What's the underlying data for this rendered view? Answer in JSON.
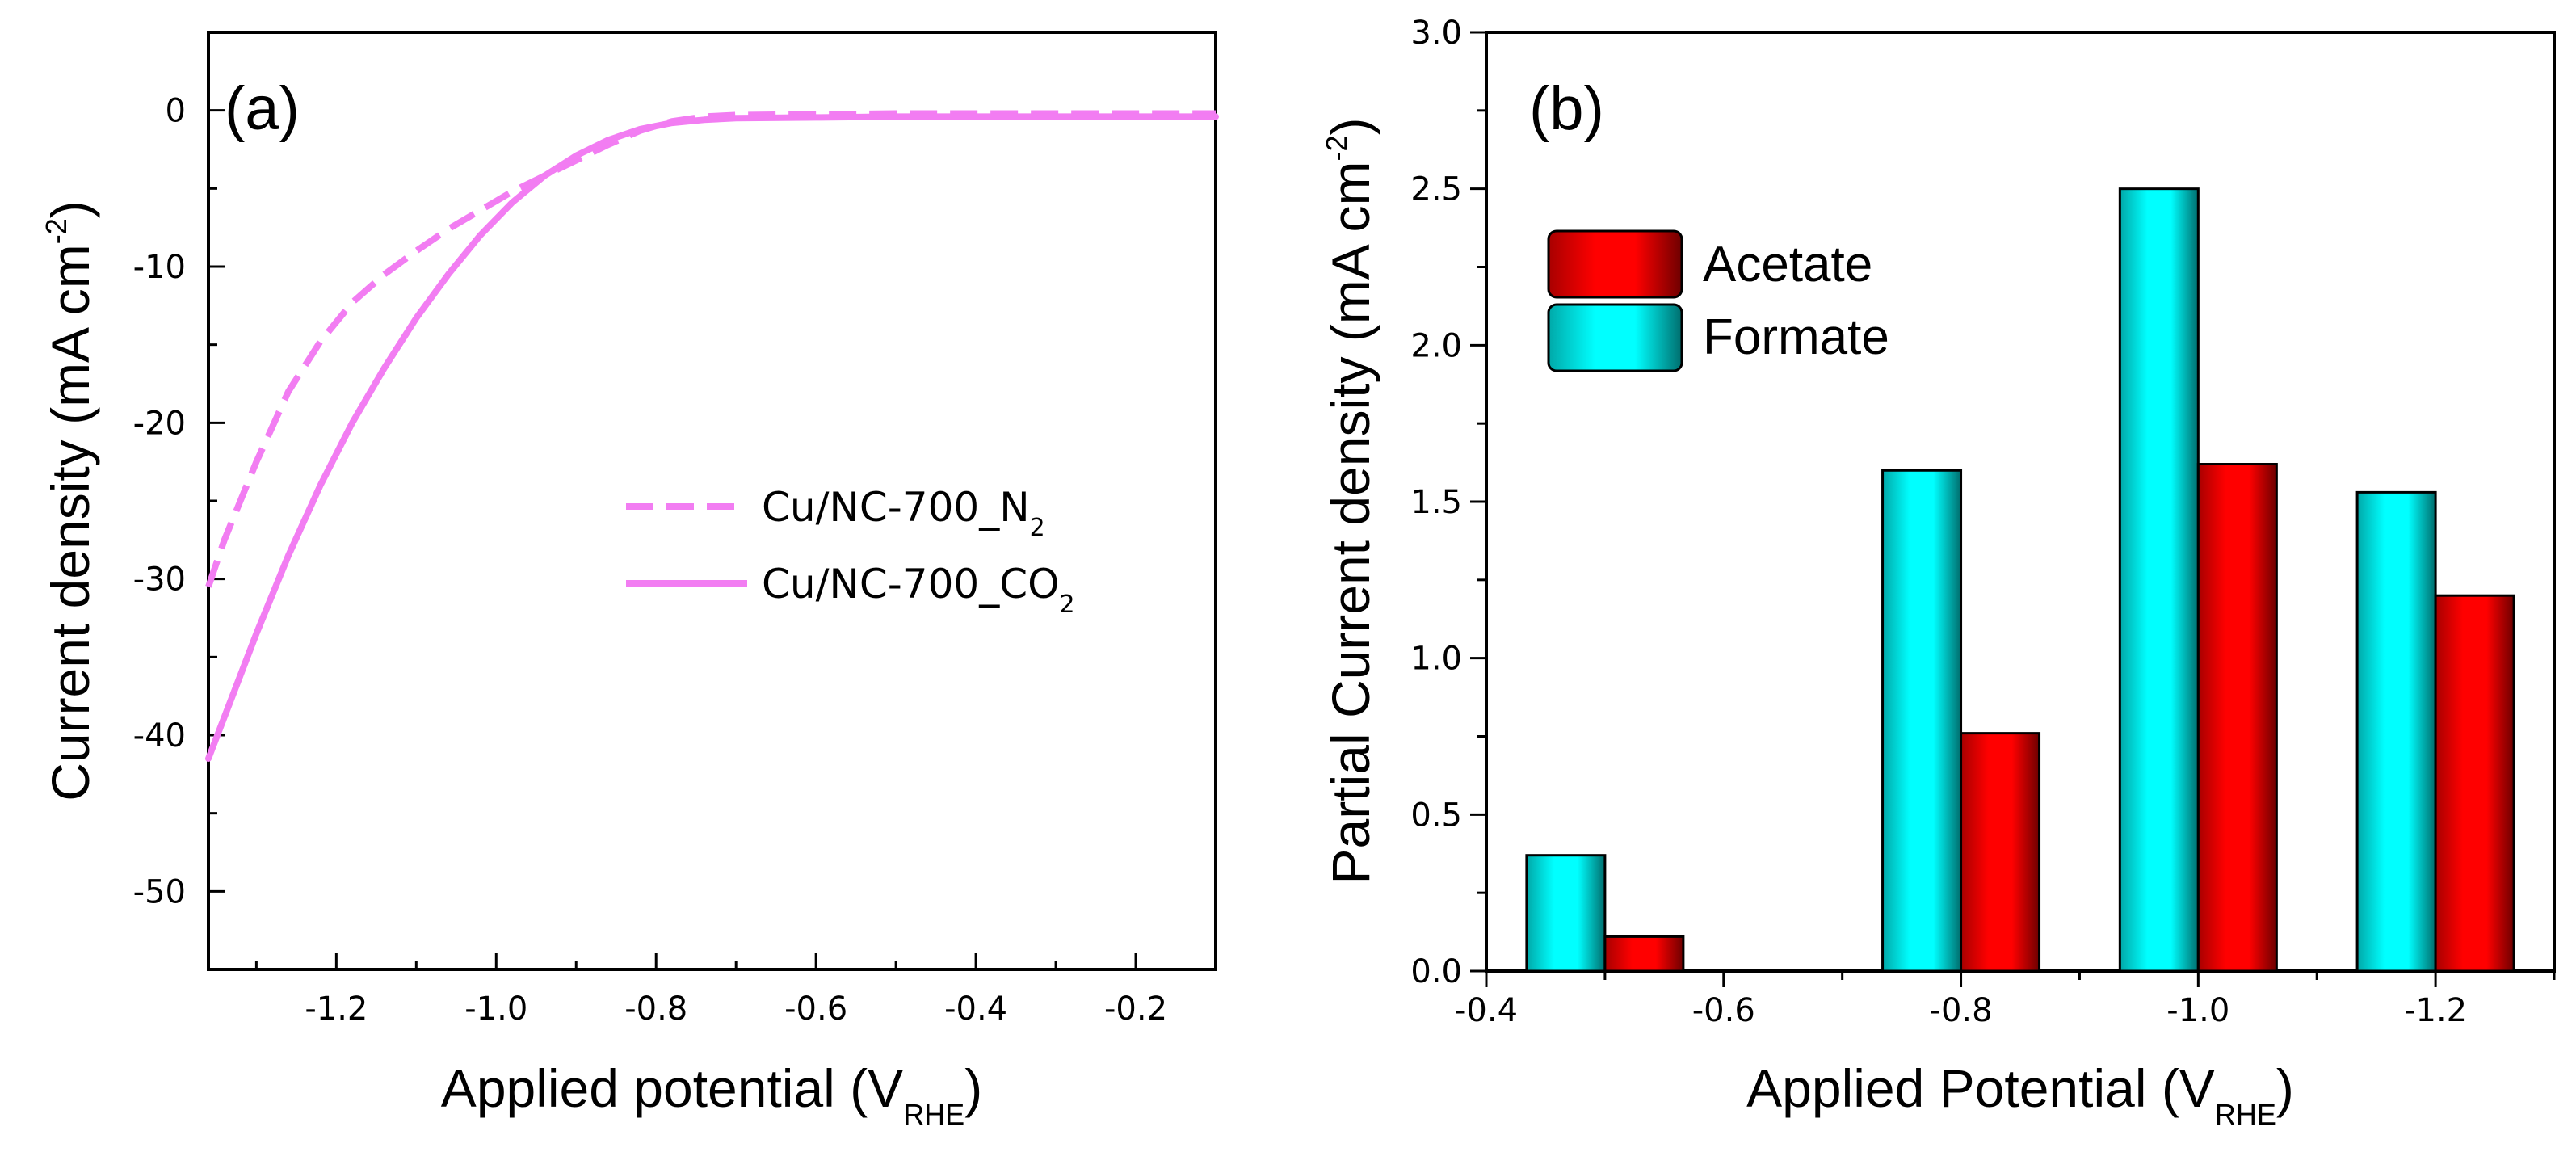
{
  "chart_data": [
    {
      "type": "line",
      "panel_label": "(a)",
      "xlabel": "Applied potential (V",
      "xlabel_sub": "RHE",
      "xlabel_close": ")",
      "ylabel": "Current density (mA cm",
      "ylabel_sup": "-2",
      "ylabel_close": ")",
      "xlim": [
        -1.36,
        -0.1
      ],
      "ylim": [
        -55,
        5
      ],
      "xticks": [
        -1.2,
        -1.0,
        -0.8,
        -0.6,
        -0.4,
        -0.2
      ],
      "xtick_labels": [
        "-1.2",
        "-1.0",
        "-0.8",
        "-0.6",
        "-0.4",
        "-0.2"
      ],
      "yticks": [
        0,
        -10,
        -20,
        -30,
        -40,
        -50
      ],
      "ytick_labels": [
        "0",
        "-10",
        "-20",
        "-30",
        "-40",
        "-50"
      ],
      "legend_position": "center-right",
      "series": [
        {
          "name": "Cu/NC-700_N2",
          "label_main": "Cu/NC-700_N",
          "label_sub": "2",
          "style": "dashed",
          "color": "#f27df2",
          "x": [
            -1.36,
            -1.34,
            -1.3,
            -1.26,
            -1.22,
            -1.18,
            -1.14,
            -1.1,
            -1.06,
            -1.02,
            -0.98,
            -0.94,
            -0.9,
            -0.86,
            -0.82,
            -0.78,
            -0.74,
            -0.7,
            -0.6,
            -0.5,
            -0.4,
            -0.3,
            -0.2,
            -0.1
          ],
          "y": [
            -30.5,
            -27.5,
            -22.5,
            -18.0,
            -14.8,
            -12.3,
            -10.5,
            -9.0,
            -7.6,
            -6.4,
            -5.2,
            -4.2,
            -3.2,
            -2.2,
            -1.3,
            -0.7,
            -0.4,
            -0.3,
            -0.25,
            -0.2,
            -0.2,
            -0.2,
            -0.2,
            -0.2
          ]
        },
        {
          "name": "Cu/NC-700_CO2",
          "label_main": "Cu/NC-700_CO",
          "label_sub": "2",
          "style": "solid",
          "color": "#f27df2",
          "x": [
            -1.36,
            -1.33,
            -1.3,
            -1.26,
            -1.22,
            -1.18,
            -1.14,
            -1.1,
            -1.06,
            -1.02,
            -0.98,
            -0.94,
            -0.9,
            -0.86,
            -0.82,
            -0.78,
            -0.74,
            -0.7,
            -0.6,
            -0.5,
            -0.4,
            -0.3,
            -0.2,
            -0.1
          ],
          "y": [
            -41.5,
            -37.5,
            -33.5,
            -28.5,
            -24.0,
            -20.0,
            -16.5,
            -13.3,
            -10.5,
            -8.0,
            -5.9,
            -4.2,
            -2.9,
            -1.9,
            -1.2,
            -0.8,
            -0.6,
            -0.5,
            -0.45,
            -0.4,
            -0.4,
            -0.4,
            -0.4,
            -0.4
          ]
        }
      ]
    },
    {
      "type": "bar",
      "panel_label": "(b)",
      "xlabel": "Applied Potential (V",
      "xlabel_sub": "RHE",
      "xlabel_close": ")",
      "ylabel": "Partial Current density (mA cm",
      "ylabel_sup": "-2",
      "ylabel_close": ")",
      "xlim": [
        -0.4,
        -1.3
      ],
      "ylim": [
        0,
        3.0
      ],
      "xticks": [
        -0.4,
        -0.6,
        -0.8,
        -1.0,
        -1.2
      ],
      "xtick_labels": [
        "-0.4",
        "-0.6",
        "-0.8",
        "-1.0",
        "-1.2"
      ],
      "yticks": [
        0.0,
        0.5,
        1.0,
        1.5,
        2.0,
        2.5,
        3.0
      ],
      "ytick_labels": [
        "0.0",
        "0.5",
        "1.0",
        "1.5",
        "2.0",
        "2.5",
        "3.0"
      ],
      "legend_position": "top-left",
      "categories": [
        -0.5,
        -0.8,
        -1.0,
        -1.2
      ],
      "series": [
        {
          "name": "Formate",
          "color": "#00ffff",
          "values": [
            0.37,
            1.6,
            2.5,
            1.53
          ]
        },
        {
          "name": "Acetate",
          "color": "#ff0000",
          "values": [
            0.11,
            0.76,
            1.62,
            1.2
          ]
        }
      ],
      "legend_order": [
        "Acetate",
        "Formate"
      ]
    }
  ]
}
